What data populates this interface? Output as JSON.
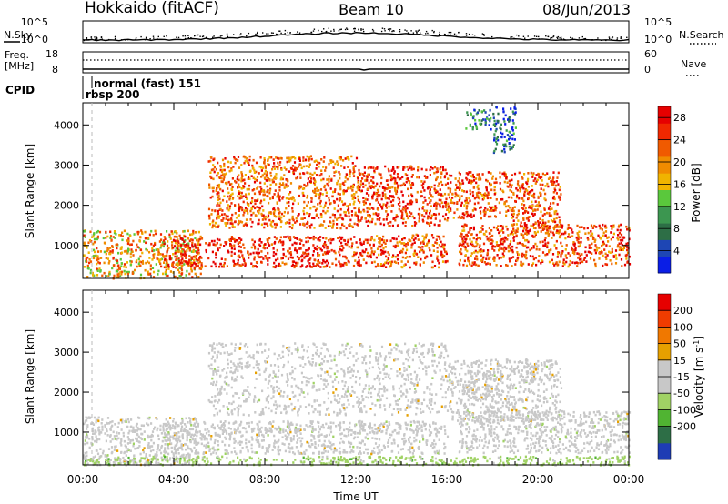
{
  "header": {
    "title": "Hokkaido (fitACF)",
    "beam": "Beam 10",
    "date": "08/Jun/2013"
  },
  "top_panel": {
    "left_label": "N.Sky",
    "right_label": "N.Search",
    "left_ticks": [
      "10^5",
      "10^0"
    ],
    "right_ticks": [
      "10^5",
      "10^0"
    ]
  },
  "freq_panel": {
    "label_line1": "Freq.",
    "label_line2": "[MHz]",
    "left_ticks": [
      "18",
      "8"
    ],
    "right_ticks": [
      "60",
      "0"
    ],
    "right_label": "Nave"
  },
  "cpid_panel": {
    "label": "CPID",
    "mode_label": "normal (fast) 151",
    "rbsp_label": "rbsp 200"
  },
  "colors": {
    "power": [
      "#0a1ee6",
      "#1e46b4",
      "#2d6e46",
      "#3c9650",
      "#5ac83c",
      "#f0b400",
      "#f08c00",
      "#f05a00",
      "#f02800",
      "#e60000"
    ],
    "velocity": [
      "#1e3cb4",
      "#2d6e46",
      "#50b432",
      "#a0d264",
      "#c8c8c8",
      "#c8c8c8",
      "#e6a000",
      "#f07800",
      "#f03c00",
      "#e60000"
    ]
  },
  "chart_data": [
    {
      "type": "heatmap",
      "title": "",
      "xlabel": "Time UT",
      "ylabel": "Slant Range [km]",
      "xlim": [
        "00:00",
        "24:00"
      ],
      "ylim": [
        180,
        4550
      ],
      "x_ticks": [
        "00:00",
        "04:00",
        "08:00",
        "12:00",
        "16:00",
        "20:00",
        "00:00"
      ],
      "y_ticks": [
        1000,
        2000,
        3000,
        4000
      ],
      "colorbar": {
        "label": "Power [dB]",
        "ticks": [
          4,
          8,
          12,
          16,
          20,
          24,
          28
        ],
        "range": [
          0,
          30
        ]
      },
      "regions": [
        {
          "x": [
            0.0,
            5.2
          ],
          "y": [
            200,
            1400
          ],
          "value": 19
        },
        {
          "x": [
            3.5,
            12.5
          ],
          "y": [
            480,
            1250
          ],
          "value": 27
        },
        {
          "x": [
            12.5,
            16.0
          ],
          "y": [
            480,
            1300
          ],
          "value": 23
        },
        {
          "x": [
            16.5,
            24.0
          ],
          "y": [
            500,
            1550
          ],
          "value": 24
        },
        {
          "x": [
            5.5,
            12.0
          ],
          "y": [
            1450,
            3250
          ],
          "value": 22
        },
        {
          "x": [
            12.0,
            16.0
          ],
          "y": [
            1500,
            3000
          ],
          "value": 25
        },
        {
          "x": [
            16.0,
            18.8
          ],
          "y": [
            1700,
            2850
          ],
          "value": 23
        },
        {
          "x": [
            18.8,
            21.0
          ],
          "y": [
            1300,
            2850
          ],
          "value": 24
        },
        {
          "x": [
            16.8,
            18.0
          ],
          "y": [
            3900,
            4400
          ],
          "value": 8
        },
        {
          "x": [
            18.0,
            19.0
          ],
          "y": [
            3300,
            4500
          ],
          "value": 6
        }
      ]
    },
    {
      "type": "heatmap",
      "title": "",
      "xlabel": "Time UT",
      "ylabel": "Slant Range [km]",
      "xlim": [
        "00:00",
        "24:00"
      ],
      "ylim": [
        180,
        4550
      ],
      "x_ticks": [
        "00:00",
        "04:00",
        "08:00",
        "12:00",
        "16:00",
        "20:00",
        "00:00"
      ],
      "y_ticks": [
        1000,
        2000,
        3000,
        4000
      ],
      "colorbar": {
        "label": "Velocity [m s^-1]",
        "ticks": [
          200,
          100,
          50,
          15,
          -15,
          -50,
          -100,
          -200
        ],
        "range": [
          -250,
          250
        ]
      },
      "regions": [
        {
          "x": [
            0.0,
            5.0
          ],
          "y": [
            200,
            1400
          ],
          "value": 0
        },
        {
          "x": [
            3.5,
            16.0
          ],
          "y": [
            480,
            1300
          ],
          "value": 0
        },
        {
          "x": [
            16.5,
            24.0
          ],
          "y": [
            500,
            1550
          ],
          "value": -5
        },
        {
          "x": [
            5.5,
            16.0
          ],
          "y": [
            1450,
            3250
          ],
          "value": 0
        },
        {
          "x": [
            16.0,
            21.0
          ],
          "y": [
            1300,
            2850
          ],
          "value": 5
        },
        {
          "x": [
            16.8,
            18.0
          ],
          "y": [
            1800,
            2200
          ],
          "value": 40
        },
        {
          "x": [
            0.0,
            24.0
          ],
          "y": [
            200,
            420
          ],
          "value": -60
        }
      ]
    }
  ]
}
